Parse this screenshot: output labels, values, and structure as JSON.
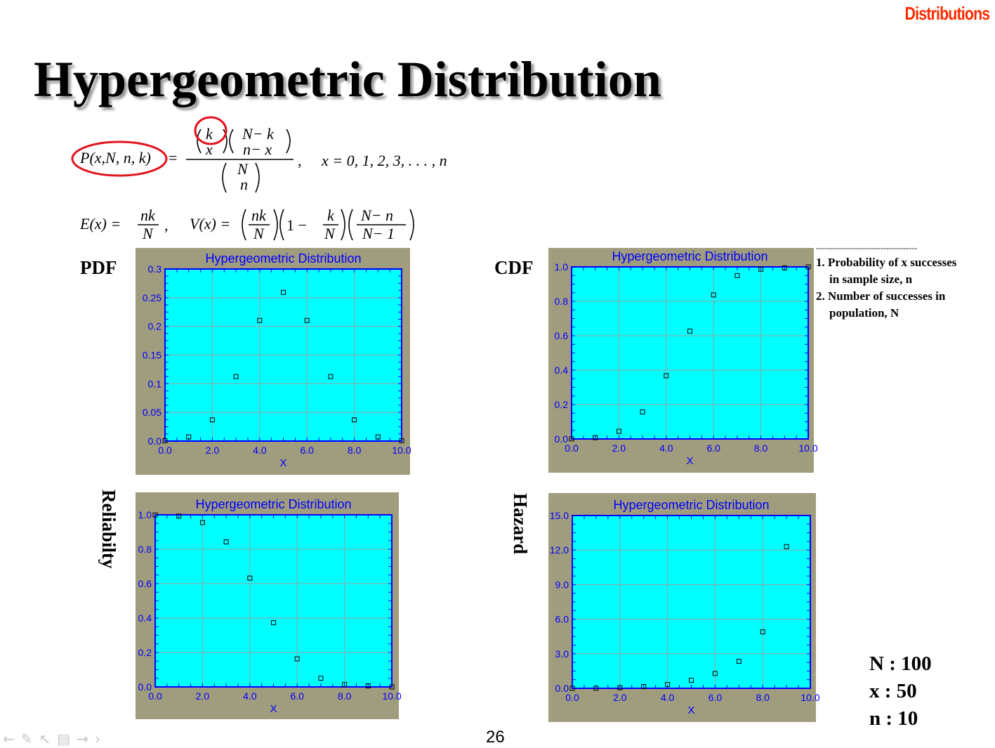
{
  "header": {
    "section": "Distributions",
    "title": "Hypergeometric Distribution"
  },
  "formulas": {
    "pmf": {
      "lhs": "P(x,N, n, k)",
      "eq": "=",
      "b1_top": "k",
      "b1_bot": "x",
      "b2_top": "N− k",
      "b2_bot": "n− x",
      "b3_top": "N",
      "b3_bot": "n",
      "comma": ",",
      "range": "x = 0, 1, 2, 3, . . . , n"
    },
    "moments": {
      "e_lhs": "E(x) =",
      "e_num": "nk",
      "e_den": "N",
      "comma": ",",
      "v_lhs": "V(x) =",
      "v_f1_num": "nk",
      "v_f1_den": "N",
      "v_one_minus": "1 −",
      "v_f2_num": "k",
      "v_f2_den": "N",
      "v_f3_num": "N− n",
      "v_f3_den": "N− 1"
    }
  },
  "labels": {
    "pdf": "PDF",
    "cdf": "CDF",
    "reliability": "Reliabilty",
    "hazard": "Hazard"
  },
  "notes": {
    "divider": "------------------------------------",
    "item1_line1": "1. Probability of x successes",
    "item1_line2": "in sample size, n",
    "item2_line1": "2. Number of successes in",
    "item2_line2": "population, N"
  },
  "params": {
    "N": "N : 100",
    "x": "x : 50",
    "n": "n : 10"
  },
  "footer": {
    "page_number": "26"
  },
  "nav_icons": [
    "arrow-left-icon",
    "pen-icon",
    "pointer-icon",
    "page-icon",
    "arrow-right-icon",
    "chevron-right-icon"
  ],
  "colors": {
    "frame": "#a09c7e",
    "plot_bg": "#00ffff",
    "axis": "#0000ff",
    "grid": "#9e9e9e",
    "title": "#0000ff",
    "accent": "#ff2a00",
    "highlight_ring": "#e0141e"
  },
  "chart_data": [
    {
      "type": "scatter",
      "title": "Hypergeometric Distribution",
      "xlabel": "X",
      "ylabel": "",
      "xlim": [
        0,
        10
      ],
      "ylim": [
        0,
        0.3
      ],
      "xticks": [
        "0.0",
        "2.0",
        "4.0",
        "6.0",
        "8.0",
        "10.0"
      ],
      "yticks": [
        "0.0",
        "0.05",
        "0.1",
        "0.15",
        "0.2",
        "0.25",
        "0.3"
      ],
      "grid": true,
      "series": [
        {
          "x": [
            0,
            1,
            2,
            3,
            4,
            5,
            6,
            7,
            8,
            9,
            10
          ],
          "y": [
            0.0006,
            0.0072,
            0.037,
            0.1125,
            0.2103,
            0.2593,
            0.2103,
            0.1125,
            0.037,
            0.0072,
            0.0006
          ]
        }
      ]
    },
    {
      "type": "scatter",
      "title": "Hypergeometric Distribution",
      "xlabel": "X",
      "ylabel": "",
      "xlim": [
        0,
        10
      ],
      "ylim": [
        0,
        1.0
      ],
      "xticks": [
        "0.0",
        "2.0",
        "4.0",
        "6.0",
        "8.0",
        "10.0"
      ],
      "yticks": [
        "0.0",
        "0.2",
        "0.4",
        "0.6",
        "0.8",
        "1.0"
      ],
      "grid": true,
      "series": [
        {
          "x": [
            0,
            1,
            2,
            3,
            4,
            5,
            6,
            7,
            8,
            9,
            10
          ],
          "y": [
            0.0006,
            0.0078,
            0.0448,
            0.1573,
            0.3676,
            0.6269,
            0.8372,
            0.9497,
            0.9867,
            0.9939,
            1.0
          ]
        }
      ]
    },
    {
      "type": "scatter",
      "title": "Hypergeometric Distribution",
      "xlabel": "X",
      "ylabel": "",
      "xlim": [
        0,
        10
      ],
      "ylim": [
        0,
        1.0
      ],
      "xticks": [
        "0.0",
        "2.0",
        "4.0",
        "6.0",
        "8.0",
        "10.0"
      ],
      "yticks": [
        "0.0",
        "0.2",
        "0.4",
        "0.6",
        "0.8",
        "1.0"
      ],
      "grid": true,
      "series": [
        {
          "x": [
            0,
            1,
            2,
            3,
            4,
            5,
            6,
            7,
            8,
            9,
            10
          ],
          "y": [
            0.9994,
            0.9922,
            0.9552,
            0.8427,
            0.6324,
            0.3731,
            0.1628,
            0.0503,
            0.0133,
            0.0061,
            0.0
          ]
        }
      ]
    },
    {
      "type": "scatter",
      "title": "Hypergeometric Distribution",
      "xlabel": "X",
      "ylabel": "",
      "xlim": [
        0,
        10
      ],
      "ylim": [
        0,
        15
      ],
      "xticks": [
        "0.0",
        "2.0",
        "4.0",
        "6.0",
        "8.0",
        "10.0"
      ],
      "yticks": [
        "0.0",
        "3.0",
        "6.0",
        "9.0",
        "12.0",
        "15.0"
      ],
      "grid": true,
      "series": [
        {
          "x": [
            0,
            1,
            2,
            3,
            4,
            5,
            6,
            7,
            8,
            9
          ],
          "y": [
            0.0,
            0.01,
            0.05,
            0.15,
            0.33,
            0.7,
            1.29,
            2.35,
            4.9,
            12.3
          ]
        }
      ]
    }
  ]
}
